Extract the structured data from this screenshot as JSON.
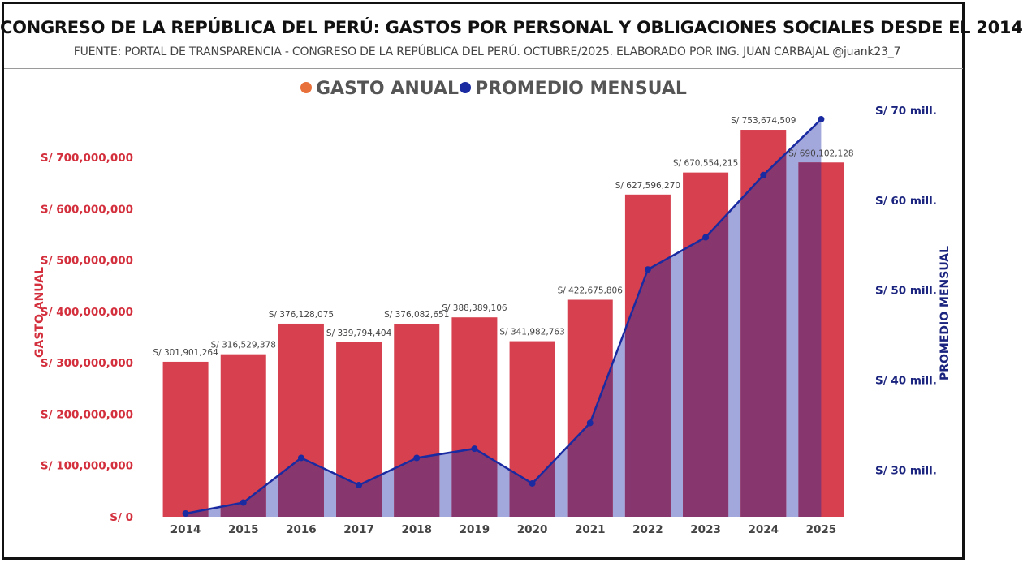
{
  "header": {
    "title": "CONGRESO DE LA REPÚBLICA DEL PERÚ: GASTOS POR PERSONAL Y OBLIGACIONES SOCIALES DESDE EL 2014",
    "subtitle": "FUENTE: PORTAL DE TRANSPARENCIA - CONGRESO DE LA REPÚBLICA DEL PERÚ. OCTUBRE/2025. ELABORADO POR ING. JUAN CARBAJAL @juank23_7"
  },
  "chart_data": {
    "type": "bar",
    "categories": [
      "2014",
      "2015",
      "2016",
      "2017",
      "2018",
      "2019",
      "2020",
      "2021",
      "2022",
      "2023",
      "2024",
      "2025"
    ],
    "series": [
      {
        "name": "GASTO ANUAL",
        "type": "bar",
        "axis": "left",
        "color": "#d6404f",
        "values": [
          301901264,
          316529378,
          376128075,
          339794404,
          376082651,
          388389106,
          341982763,
          422675806,
          627596270,
          670554215,
          753674509,
          690102128
        ],
        "labels": [
          "S/ 301,901,264",
          "S/ 316,529,378",
          "S/ 376,128,075",
          "S/ 339,794,404",
          "S/ 376,082,651",
          "S/ 388,389,106",
          "S/ 341,982,763",
          "S/ 422,675,806",
          "S/ 627,596,270",
          "S/ 670,554,215",
          "S/ 753,674,509",
          "S/ 690,102,128"
        ]
      },
      {
        "name": "PROMEDIO MENSUAL",
        "type": "line",
        "axis": "right",
        "color": "#1a2aa0",
        "values": [
          25158439,
          26377448,
          31344006,
          28316200,
          31340221,
          32365759,
          28498564,
          35222984,
          52299689,
          55879518,
          62806209,
          69010213
        ]
      }
    ],
    "legend_position": "top-center",
    "yaxis_left": {
      "title": "GASTO ANUAL",
      "range": [
        0,
        760000000
      ],
      "ticks": [
        0,
        100000000,
        200000000,
        300000000,
        400000000,
        500000000,
        600000000,
        700000000
      ],
      "tick_labels": [
        "S/ 0",
        "S/ 100,000,000",
        "S/ 200,000,000",
        "S/ 300,000,000",
        "S/ 400,000,000",
        "S/ 500,000,000",
        "S/ 600,000,000",
        "S/ 700,000,000"
      ]
    },
    "yaxis_right": {
      "title": "PROMEDIO MENSUAL",
      "range": [
        25158439,
        69010213
      ],
      "ticks": [
        30000000,
        40000000,
        50000000,
        60000000,
        70000000
      ],
      "tick_labels": [
        "S/ 30 mill.",
        "S/ 40 mill.",
        "S/ 50 mill.",
        "S/ 60 mill.",
        "S/ 70 mill."
      ]
    },
    "overlap_fill_color": "#a3a8dc",
    "grid": false
  },
  "colors": {
    "bar": "#d6404f",
    "line": "#1a2aa0",
    "area": "#a3a8dc",
    "overlap": "#87376e",
    "legend_bar_dot": "#e8703a"
  }
}
